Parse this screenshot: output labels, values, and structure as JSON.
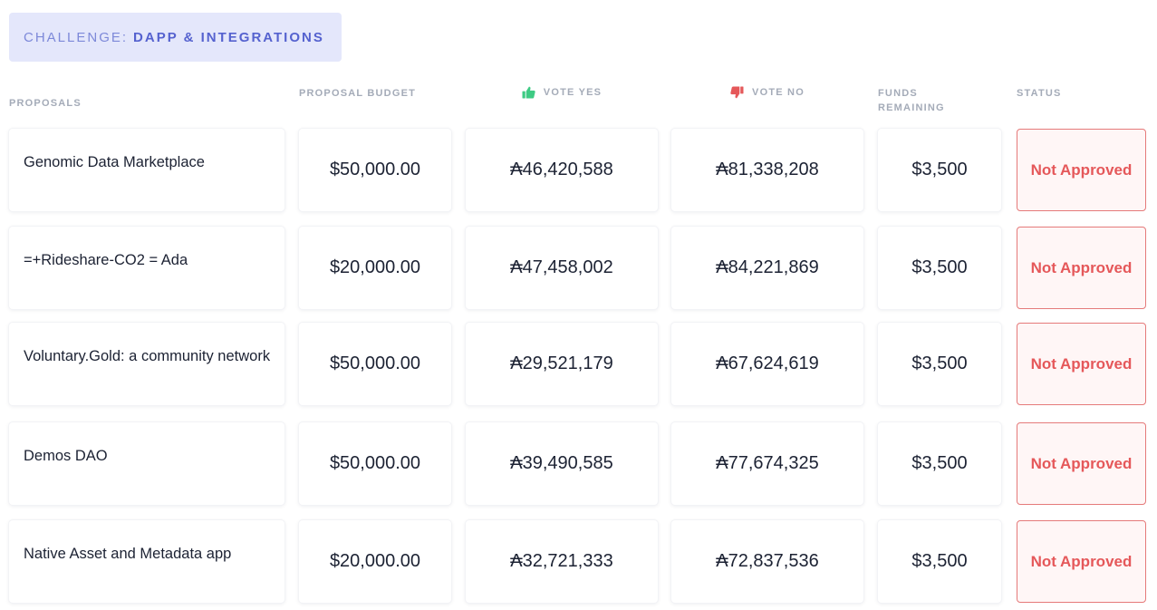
{
  "challenge": {
    "prefix": "CHALLENGE:",
    "name": "DAPP & INTEGRATIONS"
  },
  "columns": {
    "proposals": "PROPOSALS",
    "budget": "PROPOSAL BUDGET",
    "vote_yes": "VOTE YES",
    "vote_no": "VOTE NO",
    "funds_remaining_line1": "FUNDS",
    "funds_remaining_line2": "REMAINING",
    "status": "STATUS"
  },
  "icons": {
    "vote_yes": "thumbs-up-icon",
    "vote_no": "thumbs-down-icon"
  },
  "colors": {
    "vote_yes_icon": "#3ecb84",
    "vote_no_icon": "#e5585a",
    "status_not_approved": "#e5585a",
    "challenge_badge_bg": "#e4e7fb"
  },
  "rows": [
    {
      "name": "Genomic Data Marketplace",
      "budget": "$50,000.00",
      "vote_yes": "₳46,420,588",
      "vote_no": "₳81,338,208",
      "funds_remaining": "$3,500",
      "status": "Not Approved"
    },
    {
      "name": " =+Rideshare-CO2 = Ada",
      "budget": "$20,000.00",
      "vote_yes": "₳47,458,002",
      "vote_no": "₳84,221,869",
      "funds_remaining": "$3,500",
      "status": "Not Approved"
    },
    {
      "name": "Voluntary.Gold: a community network",
      "budget": "$50,000.00",
      "vote_yes": "₳29,521,179",
      "vote_no": "₳67,624,619",
      "funds_remaining": "$3,500",
      "status": "Not Approved"
    },
    {
      "name": "Demos DAO",
      "budget": "$50,000.00",
      "vote_yes": "₳39,490,585",
      "vote_no": "₳77,674,325",
      "funds_remaining": "$3,500",
      "status": "Not Approved"
    },
    {
      "name": "Native Asset and Metadata app",
      "budget": "$20,000.00",
      "vote_yes": "₳32,721,333",
      "vote_no": "₳72,837,536",
      "funds_remaining": "$3,500",
      "status": "Not Approved"
    }
  ]
}
